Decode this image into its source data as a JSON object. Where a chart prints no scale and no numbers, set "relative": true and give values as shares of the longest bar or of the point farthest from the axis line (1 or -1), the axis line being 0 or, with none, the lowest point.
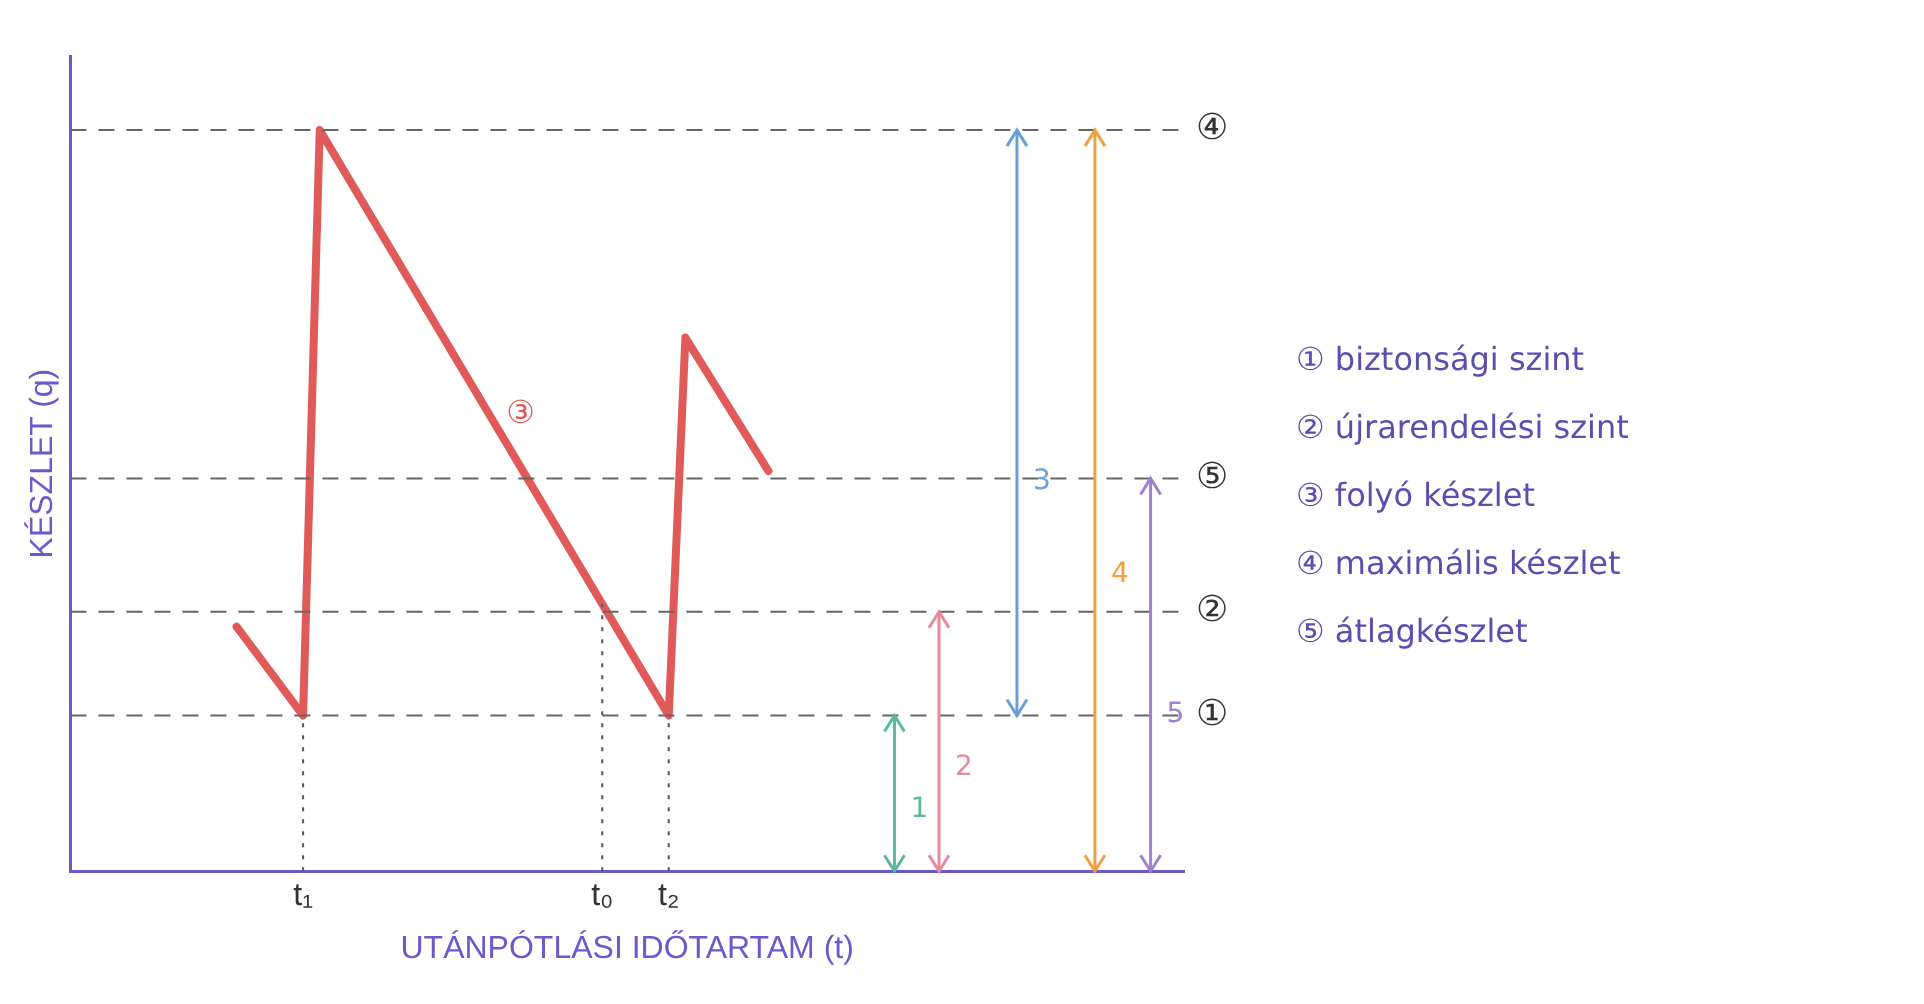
{
  "chart_data": {
    "type": "line",
    "relative": true,
    "xlabel": "UTÁNPÓTLÁSI IDŐTARTAM (t)",
    "ylabel": "KÉSZLET (q)",
    "categories": [
      null,
      null,
      null,
      null,
      null,
      null,
      null,
      null,
      null,
      null,
      null,
      null,
      null,
      null,
      "t₁",
      null,
      null,
      null,
      null,
      null,
      null,
      null,
      null,
      null,
      null,
      null,
      null,
      null,
      null,
      null,
      null,
      null,
      "t₀",
      null,
      null,
      null,
      "t₂",
      null,
      null,
      null,
      null,
      null,
      null,
      null,
      null,
      null,
      null,
      null,
      null,
      null,
      null,
      null,
      null,
      null,
      null,
      null,
      null,
      null,
      null,
      null,
      null,
      null,
      null,
      null,
      null,
      null,
      null,
      null
    ],
    "series": [
      {
        "name": "③",
        "color": "#e05a5a",
        "values": [
          null,
          null,
          null,
          null,
          null,
          null,
          null,
          null,
          null,
          null,
          0.33,
          null,
          null,
          null,
          0.21,
          1,
          null,
          null,
          null,
          null,
          null,
          null,
          null,
          null,
          null,
          null,
          null,
          null,
          null,
          null,
          null,
          null,
          null,
          null,
          null,
          null,
          0.21,
          0.72,
          null,
          null,
          null,
          null,
          0.54,
          null,
          null,
          null,
          null,
          null,
          null,
          null,
          null,
          null,
          null,
          null,
          null,
          null,
          null,
          null,
          null,
          null,
          null,
          null,
          null,
          null,
          null,
          null,
          null,
          null
        ]
      }
    ],
    "ref_lines": [
      {
        "axis": "y",
        "value": 0.21,
        "label": "①",
        "color": "#666666",
        "line_style": "dashed"
      },
      {
        "axis": "y",
        "value": 0.35,
        "label": "②",
        "color": "#666666",
        "line_style": "dashed"
      },
      {
        "axis": "y",
        "value": 0.53,
        "label": "⑤",
        "color": "#666666",
        "line_style": "dashed"
      },
      {
        "axis": "y",
        "value": 1,
        "label": "④",
        "color": "#666666",
        "line_style": "dashed"
      },
      {
        "axis": "x",
        "value": "t₁",
        "label": null,
        "color": "#555555",
        "line_style": "dotted"
      },
      {
        "axis": "x",
        "value": "t₀",
        "label": null,
        "color": "#555555",
        "line_style": "dotted"
      },
      {
        "axis": "x",
        "value": "t₂",
        "label": null,
        "color": "#555555",
        "line_style": "dotted"
      }
    ],
    "annotations": [
      "1",
      "2",
      "3",
      "4",
      "5",
      "① biztonsági szint",
      "② újrarendelési szint",
      "③ folyó készlet",
      "④ maximális készlet",
      "⑤ átlagkészlet"
    ],
    "legend": false,
    "grid": false,
    "marker": "none",
    "line_style": "solid"
  }
}
